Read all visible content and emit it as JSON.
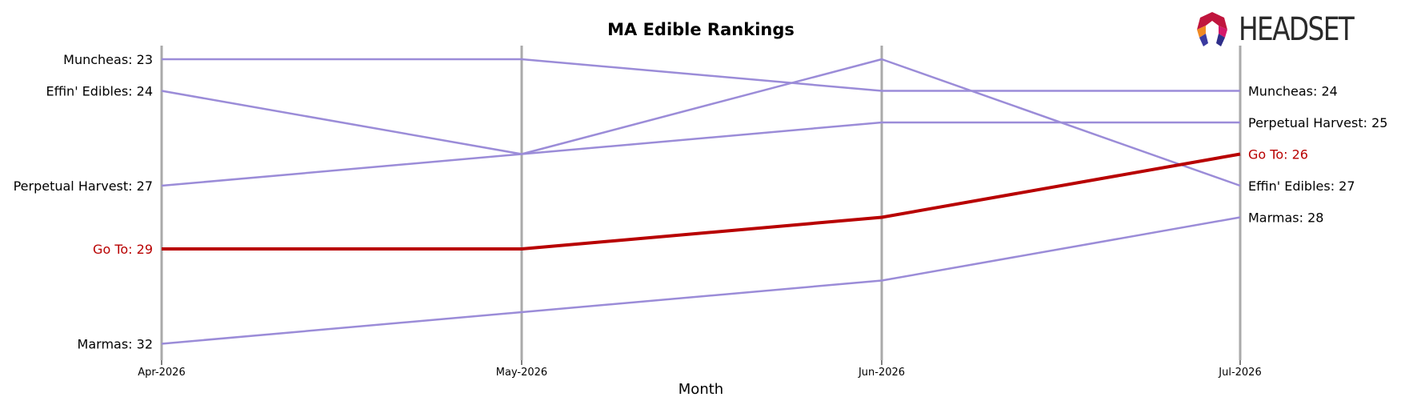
{
  "chart_data": {
    "type": "line",
    "title": "MA Edible Rankings",
    "xlabel": "Month",
    "ylabel": "",
    "categories": [
      "Apr-2026",
      "May-2026",
      "Jun-2026",
      "Jul-2026"
    ],
    "y_inverted": true,
    "ylim": [
      33,
      22
    ],
    "grid": "vertical",
    "highlight_color": "#b80000",
    "base_color": "#9b8cd8",
    "series": [
      {
        "name": "Muncheas",
        "values": [
          23,
          23,
          24,
          24
        ],
        "highlight": false,
        "start_label": "Muncheas: 23",
        "end_label": "Muncheas: 24"
      },
      {
        "name": "Effin' Edibles",
        "values": [
          24,
          26,
          23,
          27
        ],
        "highlight": false,
        "start_label": "Effin' Edibles: 24",
        "end_label": "Effin' Edibles: 27"
      },
      {
        "name": "Perpetual Harvest",
        "values": [
          27,
          26,
          25,
          25
        ],
        "highlight": false,
        "start_label": "Perpetual Harvest: 27",
        "end_label": "Perpetual Harvest: 25"
      },
      {
        "name": "Go To",
        "values": [
          29,
          29,
          28,
          26
        ],
        "highlight": true,
        "start_label": "Go To: 29",
        "end_label": "Go To: 26"
      },
      {
        "name": "Marmas",
        "values": [
          32,
          31,
          30,
          28
        ],
        "highlight": false,
        "start_label": "Marmas: 32",
        "end_label": "Marmas: 28"
      }
    ]
  },
  "logo": {
    "text": "HEADSET"
  }
}
